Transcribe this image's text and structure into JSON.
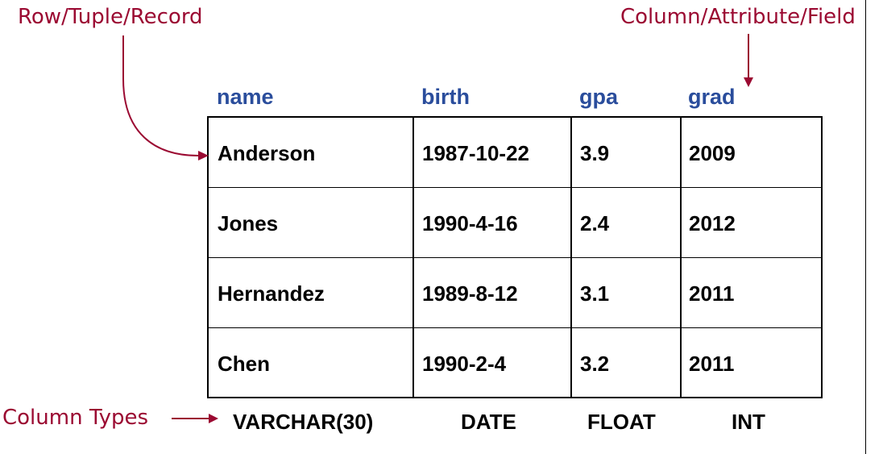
{
  "colors": {
    "annotation": "#9b0a32",
    "header": "#2a4d9c",
    "cell_text": "#000000",
    "border": "#000000"
  },
  "annotations": {
    "row_label": "Row/Tuple/Record",
    "column_label": "Column/Attribute/Field",
    "types_label": "Column Types"
  },
  "columns": [
    "name",
    "birth",
    "gpa",
    "grad"
  ],
  "rows": [
    [
      "Anderson",
      "1987-10-22",
      "3.9",
      "2009"
    ],
    [
      "Jones",
      "1990-4-16",
      "2.4",
      "2012"
    ],
    [
      "Hernandez",
      "1989-8-12",
      "3.1",
      "2011"
    ],
    [
      "Chen",
      "1990-2-4",
      "3.2",
      "2011"
    ]
  ],
  "types": [
    "VARCHAR(30)",
    "DATE",
    "FLOAT",
    "INT"
  ]
}
